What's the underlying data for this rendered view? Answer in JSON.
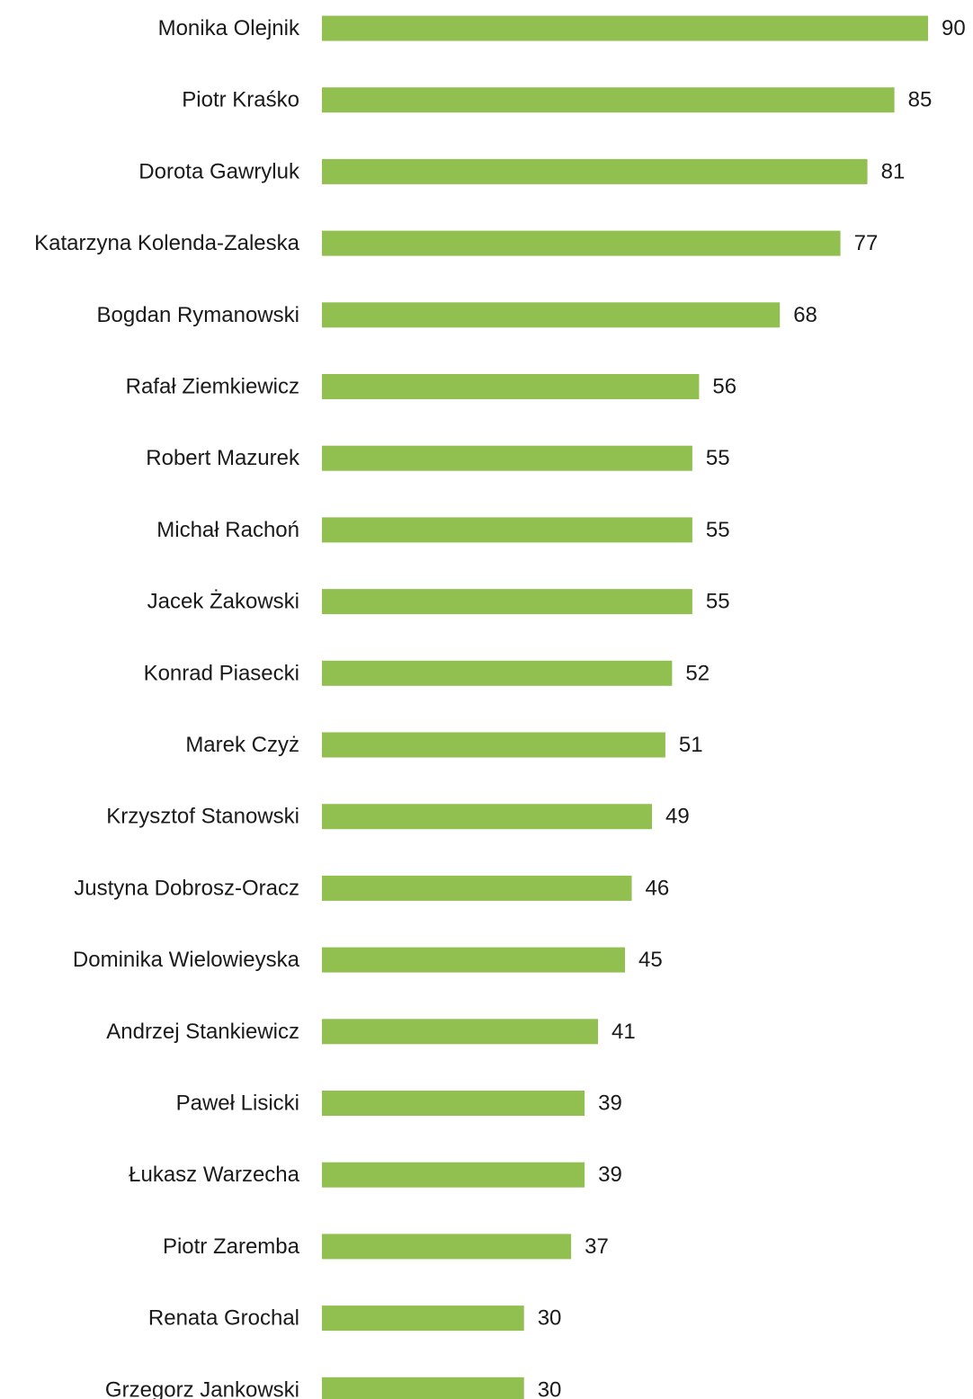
{
  "chart_data": {
    "type": "bar",
    "orientation": "horizontal",
    "title": "",
    "xlabel": "",
    "ylabel": "",
    "categories": [
      "Monika Olejnik",
      "Piotr Kraśko",
      "Dorota Gawryluk",
      "Katarzyna Kolenda-Zaleska",
      "Bogdan Rymanowski",
      "Rafał Ziemkiewicz",
      "Robert Mazurek",
      "Michał Rachoń",
      "Jacek Żakowski",
      "Konrad Piasecki",
      "Marek Czyż",
      "Krzysztof Stanowski",
      "Justyna Dobrosz-Oracz",
      "Dominika Wielowieyska",
      "Andrzej Stankiewicz",
      "Paweł Lisicki",
      "Łukasz Warzecha",
      "Piotr Zaremba",
      "Renata Grochal",
      "Grzegorz Jankowski"
    ],
    "values": [
      90,
      85,
      81,
      77,
      68,
      56,
      55,
      55,
      55,
      52,
      51,
      49,
      46,
      45,
      41,
      39,
      39,
      37,
      30,
      30
    ],
    "value_labels": [
      "90",
      "85",
      "81",
      "77",
      "68",
      "56",
      "55",
      "55",
      "55",
      "52",
      "51",
      "49",
      "46",
      "45",
      "41",
      "39",
      "39",
      "37",
      "30",
      "30"
    ],
    "xlim": [
      0,
      90
    ],
    "grid": false,
    "legend": "none",
    "bar_color": "#92c050",
    "text_color": "#1a1a1a"
  }
}
